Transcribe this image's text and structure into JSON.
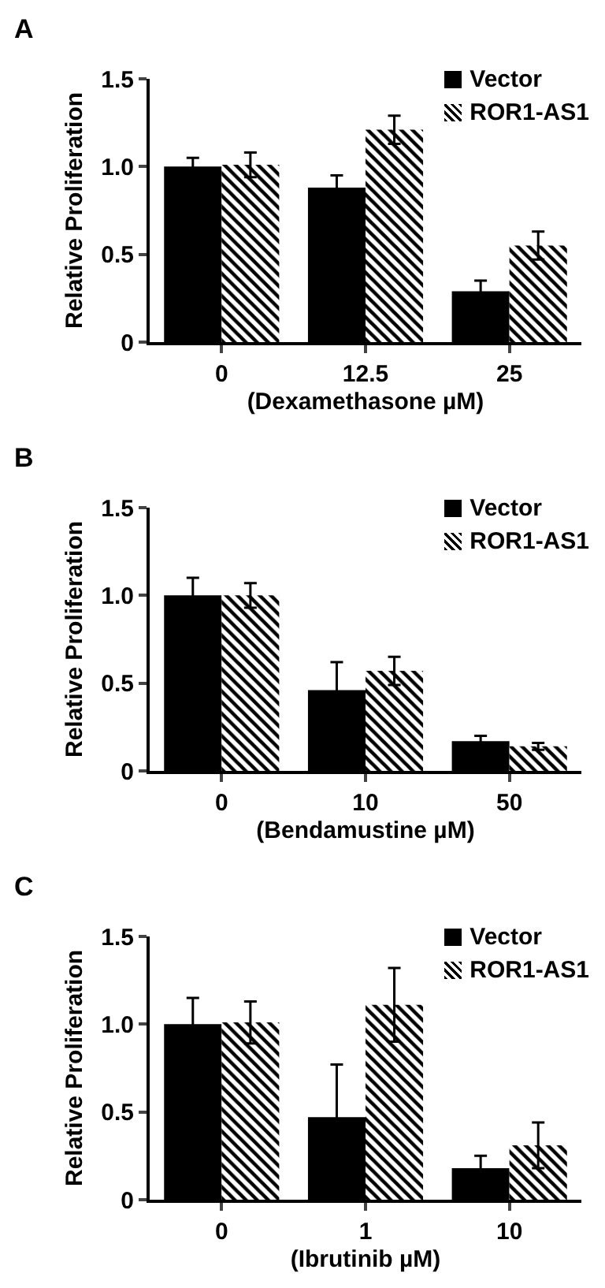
{
  "chart_data": [
    {
      "type": "bar",
      "annotations": [
        "A"
      ],
      "xlabel": "(Dexamethasone µM)",
      "ylabel": "Relative Proliferation",
      "categories": [
        "0",
        "12.5",
        "25"
      ],
      "ylim": [
        0,
        1.5
      ],
      "yticks": [
        {
          "value": 0,
          "label": "0"
        },
        {
          "value": 0.5,
          "label": "0.5"
        },
        {
          "value": 1,
          "label": "1.0"
        },
        {
          "value": 1.5,
          "label": "1.5"
        }
      ],
      "grid": false,
      "legend": "top right",
      "series": [
        {
          "name": "Vector",
          "color": "#000000",
          "values": [
            1.0,
            0.88,
            0.29
          ],
          "errors": [
            0.05,
            0.07,
            0.06
          ]
        },
        {
          "name": "ROR1-AS1",
          "color": "#000000",
          "values": [
            1.01,
            1.21,
            0.55
          ],
          "errors": [
            0.07,
            0.08,
            0.08
          ]
        }
      ]
    },
    {
      "type": "bar",
      "annotations": [
        "B"
      ],
      "xlabel": "(Bendamustine µM)",
      "ylabel": "Relative Proliferation",
      "categories": [
        "0",
        "10",
        "50"
      ],
      "ylim": [
        0,
        1.5
      ],
      "yticks": [
        {
          "value": 0,
          "label": "0"
        },
        {
          "value": 0.5,
          "label": "0.5"
        },
        {
          "value": 1,
          "label": "1.0"
        },
        {
          "value": 1.5,
          "label": "1.5"
        }
      ],
      "grid": false,
      "legend": "top right",
      "series": [
        {
          "name": "Vector",
          "color": "#000000",
          "values": [
            1.0,
            0.46,
            0.17
          ],
          "errors": [
            0.1,
            0.16,
            0.03
          ]
        },
        {
          "name": "ROR1-AS1",
          "color": "#000000",
          "values": [
            1.0,
            0.57,
            0.14
          ],
          "errors": [
            0.07,
            0.08,
            0.02
          ]
        }
      ]
    },
    {
      "type": "bar",
      "annotations": [
        "C"
      ],
      "xlabel": "(Ibrutinib µM)",
      "ylabel": "Relative Proliferation",
      "categories": [
        "0",
        "1",
        "10"
      ],
      "ylim": [
        0,
        1.5
      ],
      "yticks": [
        {
          "value": 0,
          "label": "0"
        },
        {
          "value": 0.5,
          "label": "0.5"
        },
        {
          "value": 1,
          "label": "1.0"
        },
        {
          "value": 1.5,
          "label": "1.5"
        }
      ],
      "grid": false,
      "legend": "top right",
      "series": [
        {
          "name": "Vector",
          "color": "#000000",
          "values": [
            1.0,
            0.47,
            0.18
          ],
          "errors": [
            0.15,
            0.3,
            0.07
          ]
        },
        {
          "name": "ROR1-AS1",
          "color": "#000000",
          "values": [
            1.01,
            1.11,
            0.31
          ],
          "errors": [
            0.12,
            0.21,
            0.13
          ]
        }
      ]
    }
  ]
}
